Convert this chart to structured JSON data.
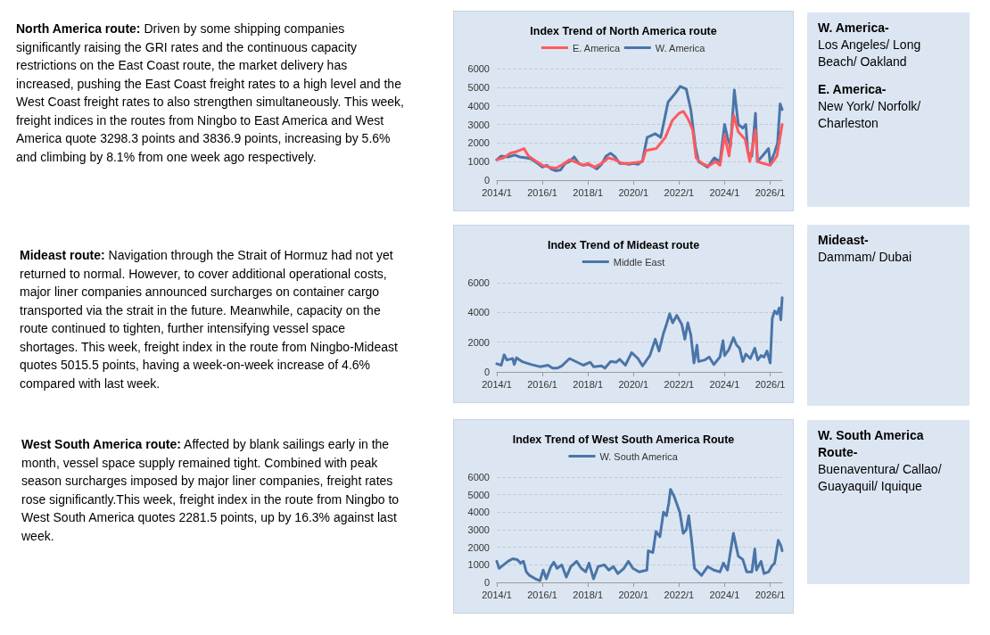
{
  "chart_data": [
    {
      "type": "other",
      "title": "North America route:",
      "annotations": [
        "Driven by some shipping companies significantly raising the GRI rates and the continuous capacity restrictions on the East Coast route, the market delivery has increased, pushing the East Coast freight rates to a high level and the West Coast freight rates to also strengthen simultaneously. This week, freight indices in the routes from Ningbo to East America and West America quote 3298.3 points and 3836.9 points, increasing by 5.6% and climbing by 8.1% from one week ago respectively."
      ]
    },
    {
      "type": "line",
      "title": "Index Trend of North America route",
      "legend": "top",
      "grid": "y",
      "xlim": [
        "2014-01-01",
        "2026-07-12"
      ],
      "xticks": [
        {
          "value": "2014-01-01",
          "label": "2014/1"
        },
        {
          "value": "2016-01-01",
          "label": "2016/1"
        },
        {
          "value": "2018-01-01",
          "label": "2018/1"
        },
        {
          "value": "2020-01-01",
          "label": "2020/1"
        },
        {
          "value": "2022-01-01",
          "label": "2022/1"
        },
        {
          "value": "2024-01-01",
          "label": "2024/1"
        },
        {
          "value": "2026-01-01",
          "label": "2026/1"
        }
      ],
      "ylim": [
        0,
        6000
      ],
      "yticks": [
        0,
        1000,
        2000,
        3000,
        4000,
        5000,
        6000
      ],
      "series": [
        {
          "name": "E. America",
          "color": "#ff5a5f",
          "x": [
            "2014-01-01",
            "2014-04-19",
            "2014-08-07",
            "2014-11-25",
            "2015-03-13",
            "2015-05-25",
            "2015-09-13",
            "2016-01-01",
            "2016-04-19",
            "2016-08-07",
            "2016-11-25",
            "2017-03-13",
            "2017-07-01",
            "2017-10-19",
            "2018-01-01",
            "2018-04-19",
            "2018-08-07",
            "2018-11-25",
            "2019-03-13",
            "2019-07-01",
            "2019-10-19",
            "2020-02-07",
            "2020-05-25",
            "2020-07-19",
            "2021-01-01",
            "2021-05-25",
            "2021-09-13",
            "2022-01-01",
            "2022-03-13",
            "2022-05-25",
            "2022-08-07",
            "2022-10-01",
            "2023-01-01",
            "2023-04-19",
            "2023-08-07",
            "2023-10-19",
            "2024-01-01",
            "2024-03-13",
            "2024-05-25",
            "2024-08-07",
            "2024-11-25",
            "2025-02-07",
            "2025-05-10",
            "2025-06-13",
            "2025-09-13",
            "2026-01-01",
            "2026-04-19",
            "2026-07-12"
          ],
          "values": [
            1100,
            1200,
            1450,
            1550,
            1700,
            1300,
            1050,
            800,
            700,
            650,
            850,
            1100,
            950,
            800,
            900,
            700,
            900,
            1200,
            1100,
            900,
            900,
            950,
            1000,
            1600,
            1700,
            2300,
            3200,
            3600,
            3700,
            3300,
            2700,
            1200,
            900,
            750,
            1000,
            800,
            2400,
            1300,
            3500,
            2600,
            2200,
            1000,
            2700,
            1000,
            900,
            800,
            1300,
            3000
          ]
        },
        {
          "name": "W. America",
          "color": "#4a75a8",
          "x": [
            "2014-01-01",
            "2014-03-13",
            "2014-07-01",
            "2014-10-19",
            "2015-01-01",
            "2015-04-19",
            "2015-07-01",
            "2015-10-19",
            "2016-01-01",
            "2016-03-13",
            "2016-05-25",
            "2016-08-07",
            "2016-10-19",
            "2017-01-01",
            "2017-03-13",
            "2017-05-25",
            "2017-08-07",
            "2017-10-19",
            "2018-01-01",
            "2018-03-13",
            "2018-05-25",
            "2018-08-07",
            "2018-10-19",
            "2019-01-01",
            "2019-03-13",
            "2019-05-25",
            "2019-08-07",
            "2019-10-19",
            "2020-01-01",
            "2020-03-13",
            "2020-05-25",
            "2020-08-07",
            "2020-12-16",
            "2021-03-13",
            "2021-07-08",
            "2021-11-07",
            "2022-01-19",
            "2022-04-26",
            "2022-07-08",
            "2022-09-20",
            "2022-11-10",
            "2023-04-04",
            "2023-07-19",
            "2023-10-19",
            "2024-01-01",
            "2024-02-17",
            "2024-04-04",
            "2024-06-05",
            "2024-08-07",
            "2024-10-19",
            "2024-12-06",
            "2025-01-08",
            "2025-03-13",
            "2025-05-10",
            "2025-06-09",
            "2025-08-28",
            "2025-12-06",
            "2026-01-01",
            "2026-03-13",
            "2026-04-29",
            "2026-06-09",
            "2026-07-12"
          ],
          "values": [
            1100,
            1300,
            1250,
            1350,
            1250,
            1200,
            1150,
            900,
            700,
            800,
            600,
            500,
            550,
            900,
            1000,
            1250,
            900,
            800,
            850,
            750,
            600,
            850,
            1300,
            1450,
            1250,
            900,
            900,
            850,
            900,
            850,
            1050,
            2300,
            2500,
            2300,
            4200,
            4700,
            5050,
            4900,
            3800,
            1800,
            1000,
            700,
            1200,
            1000,
            3000,
            2300,
            1800,
            4850,
            3000,
            2800,
            3000,
            1500,
            1300,
            3600,
            1000,
            1300,
            1700,
            900,
            1500,
            2000,
            4100,
            3800
          ]
        }
      ]
    },
    {
      "type": "other",
      "annotations": [
        "W. America-",
        "Los Angeles/ Long Beach/ Oakland",
        "E. America-",
        "New York/ Norfolk/ Charleston"
      ]
    },
    {
      "type": "other",
      "title": "Mideast route:",
      "annotations": [
        "Navigation through the Strait of Hormuz had not yet returned to normal. However, to cover additional operational costs, major liner companies announced surcharges on container cargo transported via the strait in the future. Meanwhile, capacity on the route continued to tighten, further intensifying vessel space shortages. This week, freight index in the route from Ningbo-Mideast quotes 5015.5 points, having a week-on-week increase of 4.6% compared with last week."
      ]
    },
    {
      "type": "line",
      "title": "Index Trend of Mideast route",
      "legend": "top",
      "grid": "y",
      "xlim": [
        "2014-01-01",
        "2026-07-12"
      ],
      "xticks": [
        {
          "value": "2014-01-01",
          "label": "2014/1"
        },
        {
          "value": "2016-01-01",
          "label": "2016/1"
        },
        {
          "value": "2018-01-01",
          "label": "2018/1"
        },
        {
          "value": "2020-01-01",
          "label": "2020/1"
        },
        {
          "value": "2022-01-01",
          "label": "2022/1"
        },
        {
          "value": "2024-01-01",
          "label": "2024/1"
        },
        {
          "value": "2026-01-01",
          "label": "2026/1"
        }
      ],
      "ylim": [
        0,
        6000
      ],
      "yticks": [
        0,
        2000,
        4000,
        6000
      ],
      "series": [
        {
          "name": "Middle East",
          "color": "#4a75a8",
          "x": [
            "2014-01-01",
            "2014-03-13",
            "2014-04-29",
            "2014-06-13",
            "2014-09-13",
            "2014-10-08",
            "2014-11-14",
            "2015-02-07",
            "2015-07-01",
            "2015-11-25",
            "2016-04-01",
            "2016-06-13",
            "2016-08-25",
            "2016-11-07",
            "2017-03-13",
            "2017-05-25",
            "2017-10-19",
            "2018-02-07",
            "2018-04-01",
            "2018-08-07",
            "2018-10-01",
            "2019-01-01",
            "2019-04-01",
            "2019-05-25",
            "2019-08-25",
            "2019-12-02",
            "2020-03-13",
            "2020-05-25",
            "2020-09-20",
            "2020-12-16",
            "2021-02-14",
            "2021-04-26",
            "2021-06-13",
            "2021-08-03",
            "2021-09-20",
            "2021-11-25",
            "2022-02-14",
            "2022-04-04",
            "2022-05-21",
            "2022-07-08",
            "2022-08-28",
            "2022-10-15",
            "2022-11-10",
            "2023-02-14",
            "2023-04-29",
            "2023-07-12",
            "2023-10-19",
            "2023-12-06",
            "2024-01-01",
            "2024-03-09",
            "2024-05-21",
            "2024-07-12",
            "2024-08-28",
            "2024-10-19",
            "2024-12-06",
            "2025-02-17",
            "2025-04-29",
            "2025-06-16",
            "2025-08-07",
            "2025-09-24",
            "2025-11-10",
            "2026-01-01",
            "2026-02-03",
            "2026-03-13",
            "2026-04-19",
            "2026-05-25",
            "2026-06-20",
            "2026-07-12"
          ],
          "values": [
            550,
            450,
            1150,
            800,
            900,
            500,
            950,
            700,
            500,
            350,
            450,
            250,
            250,
            400,
            900,
            750,
            450,
            650,
            350,
            400,
            250,
            700,
            650,
            850,
            450,
            1300,
            900,
            400,
            1100,
            2200,
            1400,
            2600,
            3200,
            3900,
            3300,
            3800,
            3200,
            2200,
            3300,
            2500,
            600,
            1800,
            700,
            800,
            1000,
            500,
            1000,
            2100,
            1100,
            1500,
            2300,
            1800,
            1600,
            700,
            1200,
            900,
            1600,
            800,
            1100,
            1000,
            1400,
            600,
            3600,
            4100,
            3900,
            4300,
            3500,
            5000
          ]
        }
      ]
    },
    {
      "type": "other",
      "annotations": [
        "Mideast-",
        "Dammam/ Dubai"
      ]
    },
    {
      "type": "other",
      "title": "West South America route:",
      "annotations": [
        "Affected by blank sailings early in the month, vessel space supply remained tight. Combined with peak season surcharges imposed by major liner companies, freight rates rose significantly.This week,  freight index in the route from Ningbo to West South America quotes 2281.5 points, up by 16.3% against last week."
      ]
    },
    {
      "type": "line",
      "title": "Index Trend of West South America Route",
      "legend": "top",
      "grid": "y",
      "xlim": [
        "2014-01-01",
        "2026-07-12"
      ],
      "xticks": [
        {
          "value": "2014-01-01",
          "label": "2014/1"
        },
        {
          "value": "2016-01-01",
          "label": "2016/1"
        },
        {
          "value": "2018-01-01",
          "label": "2018/1"
        },
        {
          "value": "2020-01-01",
          "label": "2020/1"
        },
        {
          "value": "2022-01-01",
          "label": "2022/1"
        },
        {
          "value": "2024-01-01",
          "label": "2024/1"
        },
        {
          "value": "2026-01-01",
          "label": "2026/1"
        }
      ],
      "ylim": [
        0,
        6000
      ],
      "yticks": [
        0,
        1000,
        2000,
        3000,
        4000,
        5000,
        6000
      ],
      "series": [
        {
          "name": "W. South America",
          "color": "#4a75a8",
          "x": [
            "2014-01-01",
            "2014-02-07",
            "2014-04-19",
            "2014-07-01",
            "2014-09-13",
            "2014-11-25",
            "2015-01-15",
            "2015-03-05",
            "2015-04-19",
            "2015-06-09",
            "2015-09-13",
            "2015-11-25",
            "2016-01-15",
            "2016-03-05",
            "2016-05-17",
            "2016-07-04",
            "2016-08-25",
            "2016-11-07",
            "2017-01-19",
            "2017-04-01",
            "2017-07-04",
            "2017-09-16",
            "2017-11-25",
            "2018-01-19",
            "2018-04-01",
            "2018-06-13",
            "2018-09-20",
            "2018-12-02",
            "2019-02-14",
            "2019-04-26",
            "2019-07-31",
            "2019-10-12",
            "2019-12-23",
            "2020-04-01",
            "2020-08-03",
            "2020-08-25",
            "2020-11-07",
            "2020-12-27",
            "2021-02-28",
            "2021-04-26",
            "2021-06-13",
            "2021-07-19",
            "2021-08-17",
            "2021-10-15",
            "2022-01-12",
            "2022-03-09",
            "2022-04-26",
            "2022-06-05",
            "2022-08-03",
            "2022-09-05",
            "2022-12-27",
            "2023-04-04",
            "2023-07-12",
            "2023-10-19",
            "2023-12-13",
            "2024-02-17",
            "2024-05-21",
            "2024-08-07",
            "2024-10-19",
            "2024-12-20",
            "2025-03-13",
            "2025-04-29",
            "2025-05-25",
            "2025-08-07",
            "2025-09-24",
            "2025-12-06",
            "2026-01-22",
            "2026-03-13",
            "2026-05-10",
            "2026-06-20",
            "2026-07-12"
          ],
          "values": [
            1200,
            800,
            1000,
            1200,
            1350,
            1300,
            1100,
            1200,
            600,
            400,
            200,
            100,
            700,
            200,
            900,
            1150,
            800,
            1000,
            300,
            900,
            1200,
            800,
            600,
            1100,
            200,
            900,
            1000,
            700,
            900,
            500,
            800,
            1200,
            800,
            600,
            700,
            1800,
            1700,
            2900,
            2600,
            4000,
            3800,
            4500,
            5300,
            4900,
            4000,
            2800,
            3000,
            3800,
            2000,
            800,
            400,
            900,
            700,
            600,
            1100,
            700,
            2800,
            1500,
            1300,
            600,
            600,
            1900,
            700,
            1200,
            500,
            600,
            900,
            1100,
            2400,
            2100,
            1800
          ]
        }
      ]
    },
    {
      "type": "other",
      "annotations": [
        "W. South America Route-",
        "Buenaventura/ Callao/ Guayaquil/ Iquique"
      ]
    }
  ]
}
